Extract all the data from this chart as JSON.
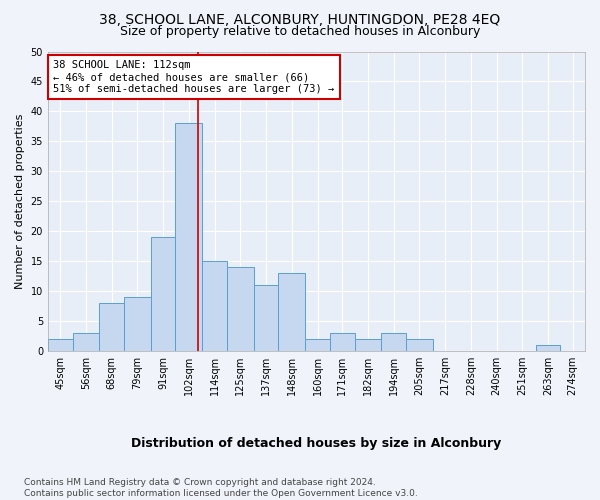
{
  "title1": "38, SCHOOL LANE, ALCONBURY, HUNTINGDON, PE28 4EQ",
  "title2": "Size of property relative to detached houses in Alconbury",
  "xlabel": "Distribution of detached houses by size in Alconbury",
  "ylabel": "Number of detached properties",
  "bin_labels": [
    "45sqm",
    "56sqm",
    "68sqm",
    "79sqm",
    "91sqm",
    "102sqm",
    "114sqm",
    "125sqm",
    "137sqm",
    "148sqm",
    "160sqm",
    "171sqm",
    "182sqm",
    "194sqm",
    "205sqm",
    "217sqm",
    "228sqm",
    "240sqm",
    "251sqm",
    "263sqm",
    "274sqm"
  ],
  "bar_values": [
    2,
    3,
    8,
    9,
    19,
    38,
    15,
    14,
    11,
    13,
    2,
    3,
    2,
    3,
    2,
    0,
    0,
    0,
    0,
    1,
    0
  ],
  "bar_color": "#c5d8f0",
  "bar_edgecolor": "#5a9fd4",
  "vline_x": 112,
  "bin_edges": [
    45,
    56,
    68,
    79,
    91,
    102,
    114,
    125,
    137,
    148,
    160,
    171,
    182,
    194,
    205,
    217,
    228,
    240,
    251,
    263,
    274,
    285
  ],
  "annotation_line1": "38 SCHOOL LANE: 112sqm",
  "annotation_line2": "← 46% of detached houses are smaller (66)",
  "annotation_line3": "51% of semi-detached houses are larger (73) →",
  "annotation_box_color": "#ffffff",
  "annotation_box_edgecolor": "#cc0000",
  "vline_color": "#cc0000",
  "ylim": [
    0,
    50
  ],
  "yticks": [
    0,
    5,
    10,
    15,
    20,
    25,
    30,
    35,
    40,
    45,
    50
  ],
  "background_color": "#f0f4fa",
  "plot_background": "#e8eef8",
  "footer_text": "Contains HM Land Registry data © Crown copyright and database right 2024.\nContains public sector information licensed under the Open Government Licence v3.0.",
  "title1_fontsize": 10,
  "title2_fontsize": 9,
  "xlabel_fontsize": 9,
  "ylabel_fontsize": 8,
  "tick_fontsize": 7,
  "annotation_fontsize": 7.5,
  "footer_fontsize": 6.5
}
